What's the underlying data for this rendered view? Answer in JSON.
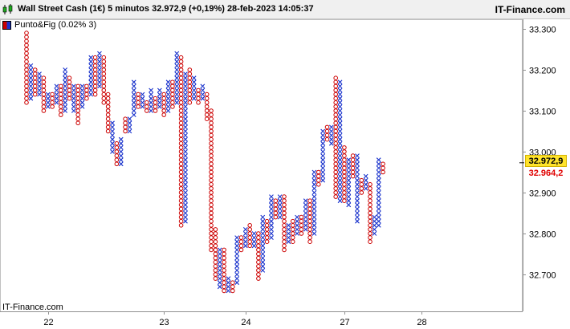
{
  "header": {
    "title": "Wall Street Cash (1€) 5 minutos 32.972,9 (+0,19%) 28-feb-2023 14:05:37",
    "brand": "IT-Finance.com"
  },
  "legend": {
    "label": "Punto&Fig (0.02% 3)"
  },
  "watermark": "IT-Finance.com",
  "colors": {
    "x_color": "#1a33cc",
    "o_color": "#cc0000",
    "last_price_bg": "#ffe32b",
    "prev_price_color": "#e00000"
  },
  "price_tags": {
    "last": "32.972,9",
    "previous": "32.964,2"
  },
  "chart_data": {
    "type": "point-and-figure",
    "ylim": [
      32620,
      33330
    ],
    "y_ticks": [
      {
        "value": 33300,
        "label": "33.300"
      },
      {
        "value": 33200,
        "label": "33.200"
      },
      {
        "value": 33100,
        "label": "33.100"
      },
      {
        "value": 33000,
        "label": "33.000"
      },
      {
        "value": 32900,
        "label": "32.900"
      },
      {
        "value": 32800,
        "label": "32.800"
      },
      {
        "value": 32700,
        "label": "32.700"
      }
    ],
    "x_ticks": [
      "22",
      "23",
      "24",
      "27",
      "28"
    ],
    "x_tick_columns": [
      5,
      32,
      51,
      74,
      92
    ],
    "last_price": 32972.9,
    "previous_price": 32964.2,
    "columns": [
      {
        "type": "O",
        "high": 33290,
        "low": 33120
      },
      {
        "type": "X",
        "high": 33210,
        "low": 33130
      },
      {
        "type": "O",
        "high": 33200,
        "low": 33140
      },
      {
        "type": "X",
        "high": 33190,
        "low": 33140
      },
      {
        "type": "O",
        "high": 33180,
        "low": 33100
      },
      {
        "type": "X",
        "high": 33140,
        "low": 33110
      },
      {
        "type": "O",
        "high": 33140,
        "low": 33110
      },
      {
        "type": "X",
        "high": 33160,
        "low": 33120
      },
      {
        "type": "O",
        "high": 33160,
        "low": 33090
      },
      {
        "type": "X",
        "high": 33200,
        "low": 33100
      },
      {
        "type": "O",
        "high": 33180,
        "low": 33130
      },
      {
        "type": "X",
        "high": 33160,
        "low": 33100
      },
      {
        "type": "O",
        "high": 33160,
        "low": 33070
      },
      {
        "type": "X",
        "high": 33160,
        "low": 33110
      },
      {
        "type": "O",
        "high": 33160,
        "low": 33130
      },
      {
        "type": "X",
        "high": 33230,
        "low": 33140
      },
      {
        "type": "O",
        "high": 33230,
        "low": 33140
      },
      {
        "type": "X",
        "high": 33240,
        "low": 33160
      },
      {
        "type": "O",
        "high": 33230,
        "low": 33120
      },
      {
        "type": "O",
        "high": 33140,
        "low": 33050
      },
      {
        "type": "X",
        "high": 33070,
        "low": 33000
      },
      {
        "type": "O",
        "high": 33020,
        "low": 32970
      },
      {
        "type": "X",
        "high": 33030,
        "low": 32970
      },
      {
        "type": "O",
        "high": 33080,
        "low": 33050
      },
      {
        "type": "X",
        "high": 33080,
        "low": 33050
      },
      {
        "type": "X",
        "high": 33170,
        "low": 33090
      },
      {
        "type": "O",
        "high": 33140,
        "low": 33110
      },
      {
        "type": "X",
        "high": 33140,
        "low": 33110
      },
      {
        "type": "O",
        "high": 33120,
        "low": 33100
      },
      {
        "type": "X",
        "high": 33150,
        "low": 33100
      },
      {
        "type": "O",
        "high": 33130,
        "low": 33100
      },
      {
        "type": "X",
        "high": 33150,
        "low": 33110
      },
      {
        "type": "O",
        "high": 33140,
        "low": 33090
      },
      {
        "type": "X",
        "high": 33170,
        "low": 33100
      },
      {
        "type": "O",
        "high": 33170,
        "low": 33110
      },
      {
        "type": "X",
        "high": 33240,
        "low": 33120
      },
      {
        "type": "O",
        "high": 33230,
        "low": 32820
      },
      {
        "type": "X",
        "high": 33190,
        "low": 32830
      },
      {
        "type": "O",
        "high": 33200,
        "low": 33120
      },
      {
        "type": "X",
        "high": 33180,
        "low": 33130
      },
      {
        "type": "O",
        "high": 33150,
        "low": 33120
      },
      {
        "type": "X",
        "high": 33160,
        "low": 33130
      },
      {
        "type": "O",
        "high": 33140,
        "low": 33080
      },
      {
        "type": "O",
        "high": 33100,
        "low": 32760
      },
      {
        "type": "O",
        "high": 32810,
        "low": 32690
      },
      {
        "type": "X",
        "high": 32760,
        "low": 32670
      },
      {
        "type": "O",
        "high": 32760,
        "low": 32660
      },
      {
        "type": "X",
        "high": 32690,
        "low": 32660
      },
      {
        "type": "O",
        "high": 32680,
        "low": 32660
      },
      {
        "type": "X",
        "high": 32790,
        "low": 32680
      },
      {
        "type": "O",
        "high": 32790,
        "low": 32760
      },
      {
        "type": "X",
        "high": 32810,
        "low": 32770
      },
      {
        "type": "O",
        "high": 32820,
        "low": 32770
      },
      {
        "type": "X",
        "high": 32800,
        "low": 32770
      },
      {
        "type": "O",
        "high": 32800,
        "low": 32690
      },
      {
        "type": "X",
        "high": 32840,
        "low": 32710
      },
      {
        "type": "O",
        "high": 32830,
        "low": 32780
      },
      {
        "type": "X",
        "high": 32890,
        "low": 32790
      },
      {
        "type": "O",
        "high": 32880,
        "low": 32840
      },
      {
        "type": "X",
        "high": 32890,
        "low": 32840
      },
      {
        "type": "O",
        "high": 32890,
        "low": 32760
      },
      {
        "type": "X",
        "high": 32820,
        "low": 32780
      },
      {
        "type": "O",
        "high": 32830,
        "low": 32780
      },
      {
        "type": "X",
        "high": 32840,
        "low": 32800
      },
      {
        "type": "O",
        "high": 32840,
        "low": 32800
      },
      {
        "type": "X",
        "high": 32880,
        "low": 32810
      },
      {
        "type": "O",
        "high": 32880,
        "low": 32780
      },
      {
        "type": "X",
        "high": 32950,
        "low": 32800
      },
      {
        "type": "O",
        "high": 32950,
        "low": 32920
      },
      {
        "type": "X",
        "high": 33050,
        "low": 32930
      },
      {
        "type": "O",
        "high": 33060,
        "low": 33030
      },
      {
        "type": "X",
        "high": 33060,
        "low": 33020
      },
      {
        "type": "O",
        "high": 33180,
        "low": 32890
      },
      {
        "type": "X",
        "high": 33170,
        "low": 32880
      },
      {
        "type": "O",
        "high": 33010,
        "low": 32880
      },
      {
        "type": "X",
        "high": 32980,
        "low": 32870
      },
      {
        "type": "O",
        "high": 32990,
        "low": 32940
      },
      {
        "type": "X",
        "high": 32990,
        "low": 32830
      },
      {
        "type": "O",
        "high": 32930,
        "low": 32900
      },
      {
        "type": "X",
        "high": 32940,
        "low": 32910
      },
      {
        "type": "O",
        "high": 32920,
        "low": 32780
      },
      {
        "type": "X",
        "high": 32840,
        "low": 32800
      },
      {
        "type": "X",
        "high": 32980,
        "low": 32820
      },
      {
        "type": "O",
        "high": 32970,
        "low": 32950
      }
    ]
  }
}
